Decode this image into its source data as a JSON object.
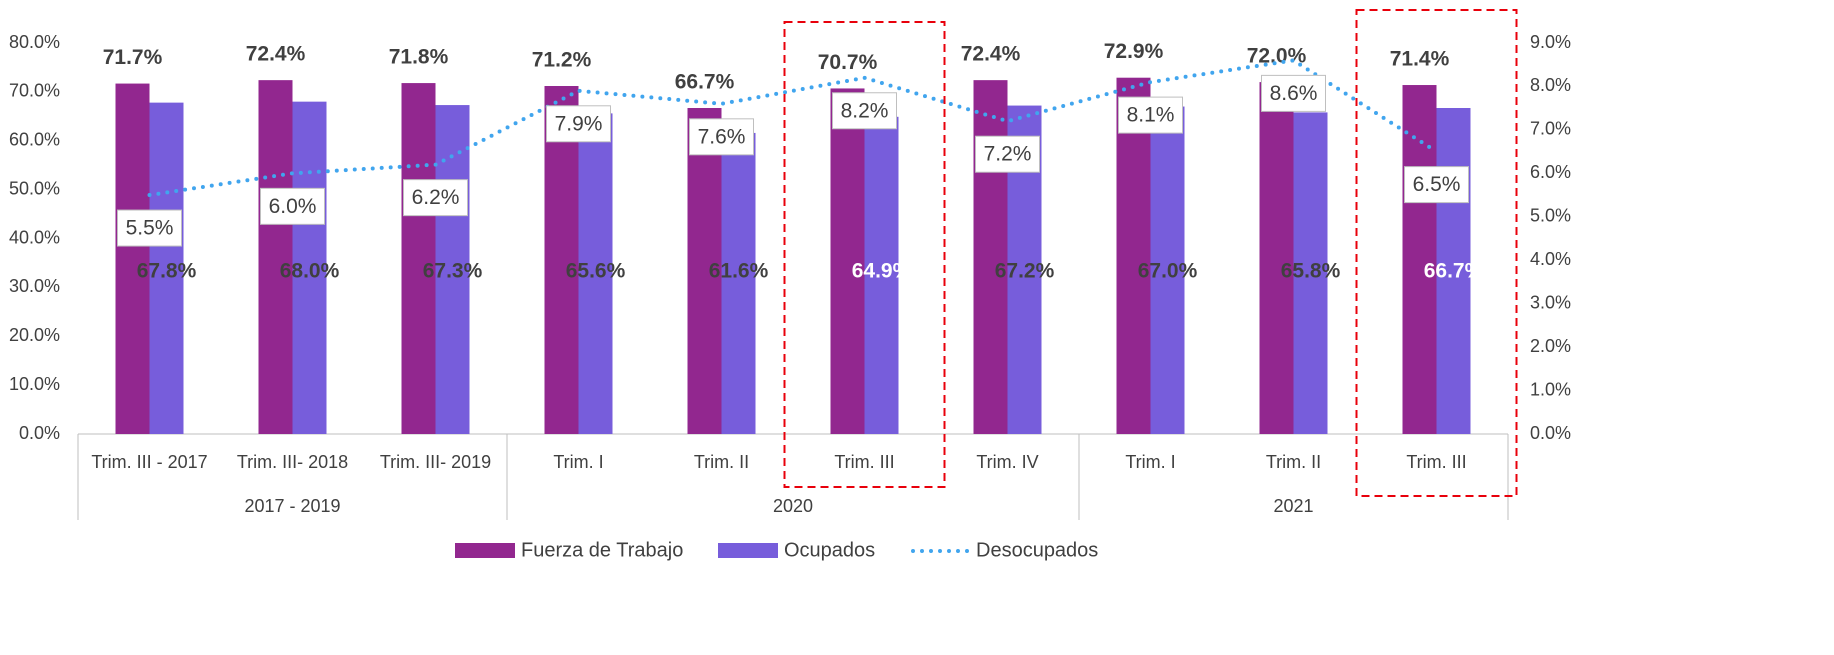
{
  "chart_data": {
    "type": "bar_line",
    "categories": [
      "Trim. III - 2017",
      "Trim. III- 2018",
      "Trim. III- 2019",
      "Trim. I",
      "Trim. II",
      "Trim. III",
      "Trim. IV",
      "Trim. I",
      "Trim. II",
      "Trim. III"
    ],
    "groups": [
      {
        "name": "2017 - 2019",
        "count": 3
      },
      {
        "name": "2020",
        "count": 4
      },
      {
        "name": "2021",
        "count": 3
      }
    ],
    "series": [
      {
        "name": "Fuerza de Trabajo",
        "type": "bar",
        "color": "#92278f",
        "values": [
          71.7,
          72.4,
          71.8,
          71.2,
          66.7,
          70.7,
          72.4,
          72.9,
          72.0,
          71.4
        ],
        "value_labels": [
          "71.7%",
          "72.4%",
          "71.8%",
          "71.2%",
          "66.7%",
          "70.7%",
          "72.4%",
          "72.9%",
          "72.0%",
          "71.4%"
        ]
      },
      {
        "name": "Ocupados",
        "type": "bar",
        "color": "#775ddb",
        "values": [
          67.8,
          68.0,
          67.3,
          65.6,
          61.6,
          64.9,
          67.2,
          67.0,
          65.8,
          66.7
        ],
        "value_labels": [
          "67.8%",
          "68.0%",
          "67.3%",
          "65.6%",
          "61.6%",
          "64.9%",
          "67.2%",
          "67.0%",
          "65.8%",
          "66.7%"
        ]
      },
      {
        "name": "Desocupados",
        "type": "line",
        "axis": "y2",
        "color": "#41a5ee",
        "values": [
          5.5,
          6.0,
          6.2,
          7.9,
          7.6,
          8.2,
          7.2,
          8.1,
          8.6,
          6.5
        ],
        "value_labels": [
          "5.5%",
          "6.0%",
          "6.2%",
          "7.9%",
          "7.6%",
          "8.2%",
          "7.2%",
          "8.1%",
          "8.6%",
          "6.5%"
        ]
      }
    ],
    "ylim": [
      0,
      80
    ],
    "yticks": [
      {
        "value": 0,
        "label": "0.0%"
      },
      {
        "value": 10,
        "label": "10.0%"
      },
      {
        "value": 20,
        "label": "20.0%"
      },
      {
        "value": 30,
        "label": "30.0%"
      },
      {
        "value": 40,
        "label": "40.0%"
      },
      {
        "value": 50,
        "label": "50.0%"
      },
      {
        "value": 60,
        "label": "60.0%"
      },
      {
        "value": 70,
        "label": "70.0%"
      },
      {
        "value": 80,
        "label": "80.0%"
      }
    ],
    "y2lim": [
      0,
      9
    ],
    "y2ticks": [
      {
        "value": 0,
        "label": "0.0%"
      },
      {
        "value": 1,
        "label": "1.0%"
      },
      {
        "value": 2,
        "label": "2.0%"
      },
      {
        "value": 3,
        "label": "3.0%"
      },
      {
        "value": 4,
        "label": "4.0%"
      },
      {
        "value": 5,
        "label": "5.0%"
      },
      {
        "value": 6,
        "label": "6.0%"
      },
      {
        "value": 7,
        "label": "7.0%"
      },
      {
        "value": 8,
        "label": "8.0%"
      },
      {
        "value": 9,
        "label": "9.0%"
      }
    ],
    "highlight": [
      5,
      9
    ],
    "legend": "bottom"
  }
}
